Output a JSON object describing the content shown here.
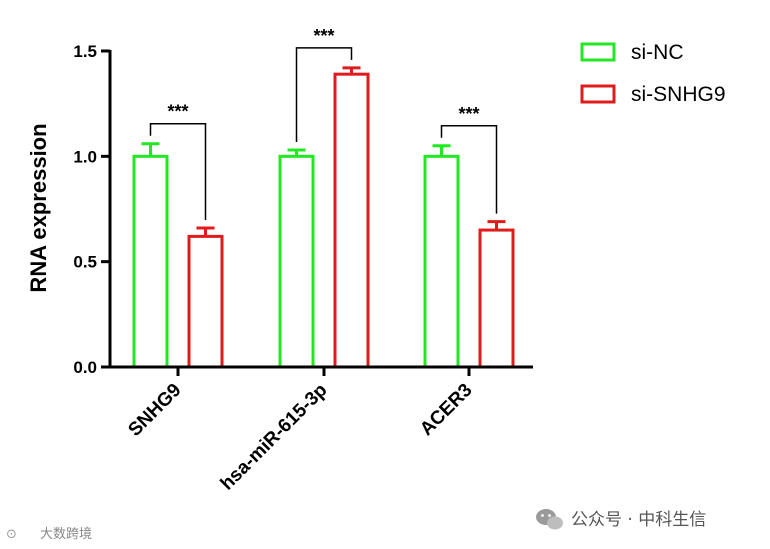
{
  "chart_data": {
    "type": "bar",
    "title": "",
    "xlabel": "",
    "ylabel": "RNA expression",
    "ylim": [
      0,
      1.5
    ],
    "yticks": [
      "0.0",
      "0.5",
      "1.0",
      "1.5"
    ],
    "categories": [
      "SNHG9",
      "hsa-miR-615-3p",
      "ACER3"
    ],
    "series": [
      {
        "name": "si-NC",
        "color": "#22e822",
        "values": [
          1.0,
          1.0,
          1.0
        ],
        "errors": [
          0.06,
          0.03,
          0.05
        ]
      },
      {
        "name": "si-SNHG9",
        "color": "#e01b1b",
        "values": [
          0.62,
          1.39,
          0.65
        ],
        "errors": [
          0.04,
          0.03,
          0.04
        ]
      }
    ],
    "significance": [
      "***",
      "***",
      "***"
    ],
    "legend_position": "top-right",
    "grid": false
  },
  "watermark": {
    "right_text": "公众号 · 中科生信",
    "left_text": "大数跨境"
  }
}
